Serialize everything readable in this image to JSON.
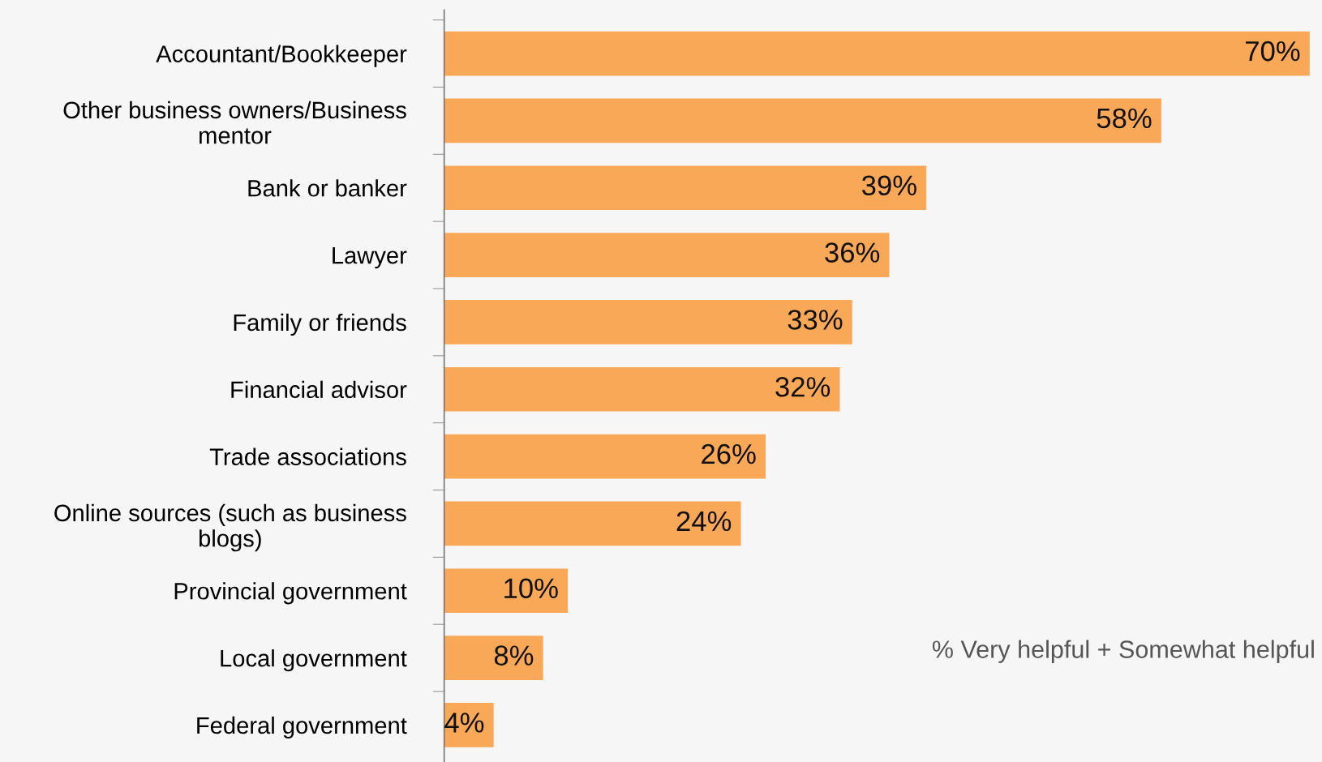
{
  "chart_data": {
    "type": "bar",
    "orientation": "horizontal",
    "categories": [
      "Accountant/Bookkeeper",
      "Other business owners/Business\nmentor",
      "Bank or banker",
      "Lawyer",
      "Family or friends",
      "Financial advisor",
      "Trade associations",
      "Online sources (such as business\nblogs)",
      "Provincial government",
      "Local government",
      "Federal government"
    ],
    "values": [
      70,
      58,
      39,
      36,
      33,
      32,
      26,
      24,
      10,
      8,
      4
    ],
    "value_labels": [
      "70%",
      "58%",
      "39%",
      "36%",
      "33%",
      "32%",
      "26%",
      "24%",
      "10%",
      "8%",
      "4%"
    ],
    "color": "#f9a857",
    "annotations": [
      "% Very helpful + Somewhat helpful"
    ]
  }
}
